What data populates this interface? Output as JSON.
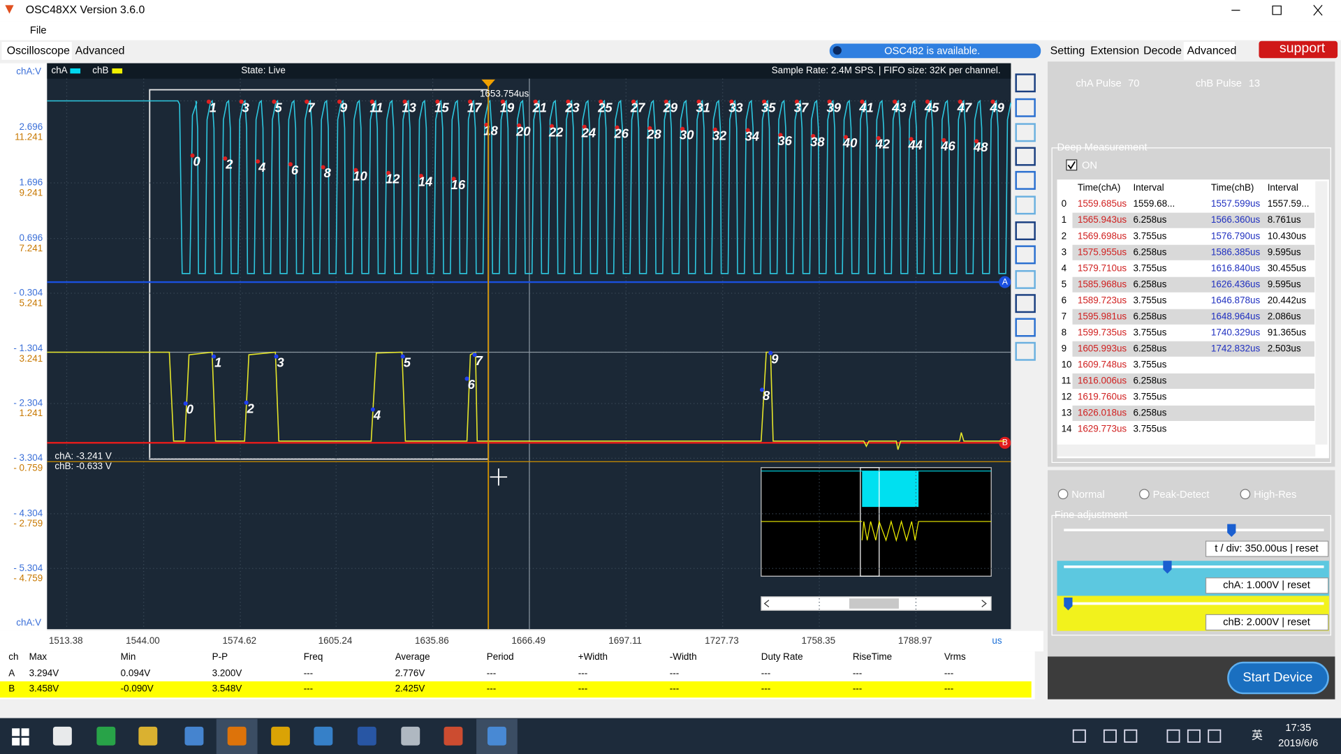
{
  "window": {
    "title": "OSC48XX  Version 3.6.0",
    "menu": [
      "File"
    ]
  },
  "left_tabs": [
    "Oscilloscope",
    "Advanced"
  ],
  "status_pill": "OSC482  is available.",
  "right_tabs": [
    "Setting",
    "Extension",
    "Decode",
    "Advanced"
  ],
  "support": "support",
  "scope": {
    "channel_legend": [
      "chA",
      "chB"
    ],
    "state": "State: Live",
    "sample_info": "Sample Rate: 2.4M SPS. | FIFO size: 32K per channel.",
    "axis_title_top": "chA:V",
    "axis_title_bottom": "chA:V",
    "y_labels": [
      [
        "2.696",
        "11.241"
      ],
      [
        "1.696",
        "9.241"
      ],
      [
        "0.696",
        "7.241"
      ],
      [
        "- 0.304",
        "5.241"
      ],
      [
        "- 1.304",
        "3.241"
      ],
      [
        "- 2.304",
        "1.241"
      ],
      [
        "- 3.304",
        "- 0.759"
      ],
      [
        "- 4.304",
        "- 2.759"
      ],
      [
        "- 5.304",
        "- 4.759"
      ]
    ],
    "x_labels": [
      "1513.38",
      "1544.00",
      "1574.62",
      "1605.24",
      "1635.86",
      "1666.49",
      "1697.11",
      "1727.73",
      "1758.35",
      "1788.97"
    ],
    "x_unit": "us",
    "cursor_time": "1653.754us",
    "cursor_readout": [
      "chA: -3.241 V",
      "chB: -0.633 V"
    ],
    "channel_markers": [
      "A",
      "B"
    ],
    "cha_pulse_labels": [
      0,
      1,
      2,
      3,
      4,
      5,
      6,
      7,
      8,
      9,
      10,
      11,
      12,
      13,
      14,
      15,
      16,
      17,
      18,
      19,
      20,
      21,
      22,
      23,
      24,
      25,
      26,
      27,
      28,
      29,
      30,
      31,
      32,
      33,
      34,
      35,
      36,
      37,
      38,
      39,
      40,
      41,
      42,
      43,
      44,
      45,
      46,
      47,
      48,
      49
    ],
    "chb_pulse_labels": [
      0,
      1,
      2,
      3,
      4,
      5,
      6,
      7,
      8,
      9
    ]
  },
  "measure_table": {
    "headers": [
      "ch",
      "Max",
      "Min",
      "P-P",
      "Freq",
      "Average",
      "Period",
      "+Width",
      "-Width",
      "Duty Rate",
      "RiseTime",
      "Vrms"
    ],
    "rows": [
      [
        "A",
        "3.294V",
        "0.094V",
        "3.200V",
        "---",
        "2.776V",
        "---",
        "---",
        "---",
        "---",
        "---",
        "---"
      ],
      [
        "B",
        "3.458V",
        "-0.090V",
        "3.548V",
        "---",
        "2.425V",
        "---",
        "---",
        "---",
        "---",
        "---",
        "---"
      ]
    ]
  },
  "panel": {
    "cha_pulse_label": "chA Pulse",
    "cha_pulse_count": 70,
    "chb_pulse_label": "chB Pulse",
    "chb_pulse_count": 13,
    "deep_title": "Deep Measurement",
    "deep_on": "ON",
    "deep_headers": [
      "Time(chA)",
      "Interval",
      "Time(chB)",
      "Interval"
    ],
    "deep_rows": [
      [
        "0",
        "1559.685us",
        "1559.68...",
        "1557.599us",
        "1557.59..."
      ],
      [
        "1",
        "1565.943us",
        "6.258us",
        "1566.360us",
        "8.761us"
      ],
      [
        "2",
        "1569.698us",
        "3.755us",
        "1576.790us",
        "10.430us"
      ],
      [
        "3",
        "1575.955us",
        "6.258us",
        "1586.385us",
        "9.595us"
      ],
      [
        "4",
        "1579.710us",
        "3.755us",
        "1616.840us",
        "30.455us"
      ],
      [
        "5",
        "1585.968us",
        "6.258us",
        "1626.436us",
        "9.595us"
      ],
      [
        "6",
        "1589.723us",
        "3.755us",
        "1646.878us",
        "20.442us"
      ],
      [
        "7",
        "1595.981us",
        "6.258us",
        "1648.964us",
        "2.086us"
      ],
      [
        "8",
        "1599.735us",
        "3.755us",
        "1740.329us",
        "91.365us"
      ],
      [
        "9",
        "1605.993us",
        "6.258us",
        "1742.832us",
        "2.503us"
      ],
      [
        "10",
        "1609.748us",
        "3.755us"
      ],
      [
        "11",
        "1616.006us",
        "6.258us"
      ],
      [
        "12",
        "1619.760us",
        "3.755us"
      ],
      [
        "13",
        "1626.018us",
        "6.258us"
      ],
      [
        "14",
        "1629.773us",
        "3.755us"
      ]
    ],
    "acq_modes": [
      "Normal",
      "Peak-Detect",
      "High-Res"
    ],
    "fine_title": "Fine adjustment",
    "fine_controls": [
      "t / div: 350.00us | reset",
      "chA: 1.000V | reset",
      "chB: 2.000V | reset"
    ],
    "start_button": "Start Device"
  },
  "taskbar": {
    "ime": "英",
    "time": "17:35",
    "date": "2019/6/6"
  }
}
